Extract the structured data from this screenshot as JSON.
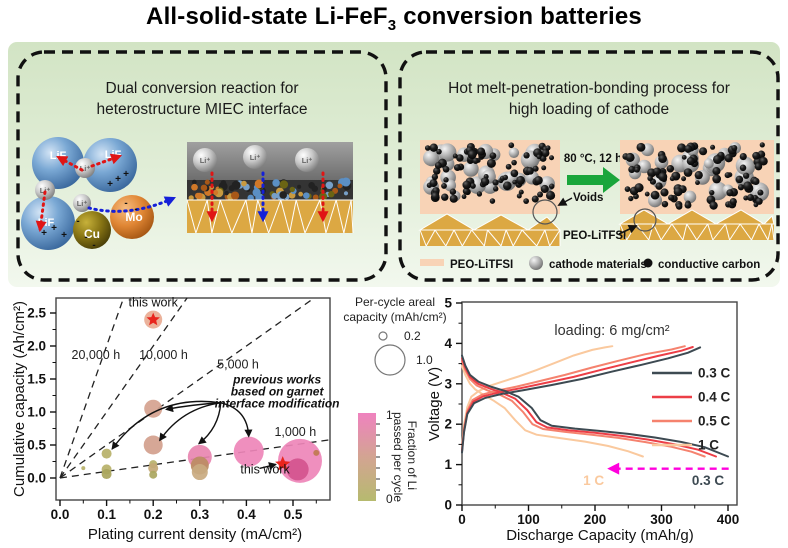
{
  "title": {
    "main": "All-solid-state Li-FeF",
    "sub": "3",
    "tail": " conversion batteries"
  },
  "left_box": {
    "heading": [
      "Dual conversion reaction for",
      "heterostructure MIEC interface"
    ],
    "labels": {
      "lif": "LiF",
      "li_ion": "Li⁺",
      "cu": "Cu",
      "mo": "Mo"
    }
  },
  "right_box": {
    "heading": [
      "Hot melt-penetration-bonding process for",
      "high loading of cathode"
    ],
    "process_label": "80 °C, 12 h",
    "voids_label": "Voids",
    "peo_pointer_label": "PEO-LiTFSI",
    "legend": [
      {
        "swatch": "peo-film",
        "label": "PEO-LiTFSI"
      },
      {
        "swatch": "gray-sphere",
        "label": "cathode materials"
      },
      {
        "swatch": "black-dot",
        "label": "conductive carbon"
      }
    ],
    "colors": {
      "peo": "#f8d3b6",
      "electrolyte_gold": "#dca843",
      "arrow_green": "#19a63b"
    }
  },
  "bubble_legend": {
    "title_lines": [
      "Per-cycle areal",
      "capacity (mAh/cm²)"
    ],
    "items": [
      {
        "r": 4,
        "label": "0.2"
      },
      {
        "r": 15,
        "label": "1.0"
      }
    ],
    "colorbar": {
      "top_label": "1",
      "bottom_label": "0",
      "axis_lines": [
        "Fraction of Li",
        "passed per cycle"
      ],
      "colors": [
        "#ef82bf",
        "#d3a492",
        "#b6ba6f"
      ]
    }
  },
  "chart_data": [
    {
      "type": "scatter",
      "xlabel": "Plating current density (mA/cm²)",
      "ylabel": "Cumulative capacity (Ah/cm²)",
      "xlim": [
        0,
        0.58
      ],
      "ylim": [
        -0.33,
        2.73
      ],
      "x_ticks": [
        "0.0",
        "0.1",
        "0.2",
        "0.3",
        "0.4",
        "0.5"
      ],
      "y_ticks": [
        "0.0",
        "0.5",
        "1.0",
        "1.5",
        "2.0",
        "2.5"
      ],
      "rate_lines": [
        {
          "hours": 20000,
          "label": "20,000 h",
          "label_at": [
            0.077,
            1.8
          ]
        },
        {
          "hours": 10000,
          "label": "10,000 h",
          "label_at": [
            0.222,
            1.8
          ]
        },
        {
          "hours": 5000,
          "label": "5,000 h",
          "label_at": [
            0.382,
            1.66
          ]
        },
        {
          "hours": 1000,
          "label": "1,000 h",
          "label_at": [
            0.505,
            0.64
          ]
        }
      ],
      "points": [
        {
          "x": 0.2,
          "y": 1.05,
          "r": 9,
          "c": "#d5a28f"
        },
        {
          "x": 0.2,
          "y": 0.5,
          "r": 9.5,
          "c": "#d3a08d"
        },
        {
          "x": 0.1,
          "y": 0.37,
          "r": 5,
          "c": "#b7b169"
        },
        {
          "x": 0.1,
          "y": 0.13,
          "r": 5,
          "c": "#b7b169"
        },
        {
          "x": 0.1,
          "y": 0.06,
          "r": 5,
          "c": "#a9a55c"
        },
        {
          "x": 0.05,
          "y": 0.15,
          "r": 2,
          "c": "#b7b169"
        },
        {
          "x": 0.2,
          "y": 0.21,
          "r": 4,
          "c": "#b7b169"
        },
        {
          "x": 0.2,
          "y": 0.15,
          "r": 5,
          "c": "#c3a875"
        },
        {
          "x": 0.2,
          "y": 0.05,
          "r": 4,
          "c": "#aaa65e"
        },
        {
          "x": 0.3,
          "y": 0.32,
          "r": 12,
          "c": "#e885b0"
        },
        {
          "x": 0.3,
          "y": 0.19,
          "r": 9,
          "c": "#bb8c63"
        },
        {
          "x": 0.3,
          "y": 0.09,
          "r": 8,
          "c": "#c9aa80"
        },
        {
          "x": 0.405,
          "y": 0.4,
          "r": 15,
          "c": "#ee86b9"
        },
        {
          "x": 0.515,
          "y": 0.26,
          "r": 22,
          "c": "#ee86b9"
        },
        {
          "x": 0.51,
          "y": 0.13,
          "r": 11,
          "c": "#d4548e"
        },
        {
          "x": 0.55,
          "y": 0.38,
          "r": 3,
          "c": "#c07a50"
        }
      ],
      "stars": [
        {
          "x": 0.2,
          "y": 2.4,
          "R": 7,
          "halo_r": 9,
          "halo": "#ebb29b",
          "c": "#e8251d"
        },
        {
          "x": 0.478,
          "y": 0.21,
          "R": 8,
          "halo_r": 0,
          "halo": "",
          "c": "#e8251d"
        }
      ],
      "annotations": {
        "this_work_top": {
          "text": "this work",
          "at": [
            0.2,
            2.6
          ]
        },
        "this_work_bottom": {
          "text": "this work",
          "at": [
            0.44,
            0.07
          ]
        },
        "previous_works": {
          "lines": [
            "previous works",
            "based on garnet",
            "interface modification"
          ],
          "at": [
            0.466,
            1.43
          ]
        },
        "this_work_arrow": {
          "from": [
            0.428,
            0.145
          ],
          "to": [
            0.463,
            0.205
          ]
        }
      },
      "arrows_from": [
        0.345,
        1.14
      ],
      "arrows": [
        {
          "to": [
            0.112,
            0.44
          ],
          "bend": 0.3
        },
        {
          "to": [
            0.214,
            0.57
          ],
          "bend": 0.22
        },
        {
          "to": [
            0.228,
            1.04
          ],
          "bend": 0.03
        },
        {
          "to": [
            0.298,
            0.52
          ],
          "bend": -0.22
        },
        {
          "to": [
            0.405,
            0.63
          ],
          "bend": -0.38
        }
      ]
    },
    {
      "type": "line",
      "annotation": "loading: 6 mg/cm²",
      "xlabel": "Discharge Capacity (mAh/g)",
      "ylabel": "Voltage (V)",
      "xlim": [
        0,
        450
      ],
      "ylim": [
        0,
        5
      ],
      "x_ticks": [
        "0",
        "100",
        "200",
        "300",
        "400"
      ],
      "y_ticks": [
        "0",
        "1",
        "2",
        "3",
        "4",
        "5"
      ],
      "legend": [
        {
          "name": "0.3 C",
          "color": "#3d4a52"
        },
        {
          "name": "0.4 C",
          "color": "#ec3e47"
        },
        {
          "name": "0.5 C",
          "color": "#f5826e"
        },
        {
          "name": "1 C",
          "color": "#fac99e"
        }
      ],
      "series": [
        {
          "name": "0.3 C",
          "color": "#3d4a52",
          "discharge": [
            [
              0,
              3.7
            ],
            [
              5,
              3.45
            ],
            [
              12,
              3.22
            ],
            [
              25,
              3.05
            ],
            [
              45,
              2.92
            ],
            [
              65,
              2.82
            ],
            [
              85,
              2.68
            ],
            [
              105,
              2.4
            ],
            [
              118,
              2.1
            ],
            [
              135,
              1.96
            ],
            [
              170,
              1.89
            ],
            [
              210,
              1.83
            ],
            [
              250,
              1.76
            ],
            [
              290,
              1.67
            ],
            [
              330,
              1.56
            ],
            [
              365,
              1.43
            ],
            [
              400,
              1.2
            ]
          ],
          "charge": [
            [
              0,
              1.3
            ],
            [
              3,
              1.8
            ],
            [
              8,
              2.25
            ],
            [
              18,
              2.52
            ],
            [
              35,
              2.65
            ],
            [
              60,
              2.75
            ],
            [
              95,
              2.85
            ],
            [
              135,
              2.97
            ],
            [
              180,
              3.12
            ],
            [
              225,
              3.3
            ],
            [
              270,
              3.47
            ],
            [
              310,
              3.63
            ],
            [
              340,
              3.77
            ],
            [
              358,
              3.9
            ]
          ]
        },
        {
          "name": "0.4 C",
          "color": "#ec3e47",
          "discharge": [
            [
              0,
              3.63
            ],
            [
              5,
              3.4
            ],
            [
              12,
              3.17
            ],
            [
              24,
              3.0
            ],
            [
              42,
              2.88
            ],
            [
              60,
              2.78
            ],
            [
              80,
              2.63
            ],
            [
              98,
              2.35
            ],
            [
              112,
              2.05
            ],
            [
              128,
              1.92
            ],
            [
              160,
              1.85
            ],
            [
              200,
              1.79
            ],
            [
              240,
              1.71
            ],
            [
              280,
              1.62
            ],
            [
              320,
              1.5
            ],
            [
              355,
              1.37
            ],
            [
              382,
              1.2
            ]
          ],
          "charge": [
            [
              0,
              1.33
            ],
            [
              3,
              1.83
            ],
            [
              8,
              2.28
            ],
            [
              17,
              2.56
            ],
            [
              32,
              2.69
            ],
            [
              56,
              2.79
            ],
            [
              88,
              2.89
            ],
            [
              125,
              3.02
            ],
            [
              168,
              3.17
            ],
            [
              210,
              3.35
            ],
            [
              252,
              3.52
            ],
            [
              295,
              3.69
            ],
            [
              330,
              3.82
            ],
            [
              347,
              3.91
            ]
          ]
        },
        {
          "name": "0.5 C",
          "color": "#f5826e",
          "discharge": [
            [
              0,
              3.56
            ],
            [
              5,
              3.34
            ],
            [
              12,
              3.12
            ],
            [
              22,
              2.96
            ],
            [
              38,
              2.84
            ],
            [
              56,
              2.74
            ],
            [
              75,
              2.58
            ],
            [
              92,
              2.3
            ],
            [
              106,
              2.0
            ],
            [
              122,
              1.88
            ],
            [
              155,
              1.81
            ],
            [
              195,
              1.74
            ],
            [
              235,
              1.66
            ],
            [
              275,
              1.56
            ],
            [
              315,
              1.44
            ],
            [
              345,
              1.32
            ],
            [
              365,
              1.2
            ]
          ],
          "charge": [
            [
              0,
              1.37
            ],
            [
              3,
              1.88
            ],
            [
              8,
              2.33
            ],
            [
              16,
              2.6
            ],
            [
              30,
              2.73
            ],
            [
              52,
              2.83
            ],
            [
              82,
              2.93
            ],
            [
              115,
              3.06
            ],
            [
              155,
              3.22
            ],
            [
              195,
              3.4
            ],
            [
              235,
              3.57
            ],
            [
              275,
              3.73
            ],
            [
              315,
              3.85
            ],
            [
              335,
              3.93
            ]
          ]
        },
        {
          "name": "1 C",
          "color": "#fac99e",
          "discharge": [
            [
              0,
              3.44
            ],
            [
              5,
              3.22
            ],
            [
              12,
              3.0
            ],
            [
              20,
              2.86
            ],
            [
              32,
              2.73
            ],
            [
              48,
              2.58
            ],
            [
              64,
              2.4
            ],
            [
              80,
              2.1
            ],
            [
              95,
              1.85
            ],
            [
              112,
              1.74
            ],
            [
              145,
              1.66
            ],
            [
              185,
              1.57
            ],
            [
              220,
              1.46
            ],
            [
              250,
              1.33
            ],
            [
              272,
              1.2
            ]
          ],
          "charge": [
            [
              0,
              1.45
            ],
            [
              3,
              1.98
            ],
            [
              8,
              2.42
            ],
            [
              14,
              2.68
            ],
            [
              25,
              2.82
            ],
            [
              40,
              2.94
            ],
            [
              60,
              3.05
            ],
            [
              85,
              3.18
            ],
            [
              112,
              3.34
            ],
            [
              140,
              3.52
            ],
            [
              168,
              3.7
            ],
            [
              196,
              3.84
            ],
            [
              215,
              3.9
            ],
            [
              226,
              3.93
            ]
          ]
        }
      ],
      "rate_arrow": {
        "v": 0.9,
        "x_from": 401,
        "x_to": 212,
        "color": "#ff00dd",
        "label_v": 0.5,
        "labels": [
          {
            "text": "1 C",
            "color": "#fac99e",
            "x": 198
          },
          {
            "text": "0.3 C",
            "color": "#3d4a52",
            "x": 370
          }
        ]
      }
    }
  ]
}
